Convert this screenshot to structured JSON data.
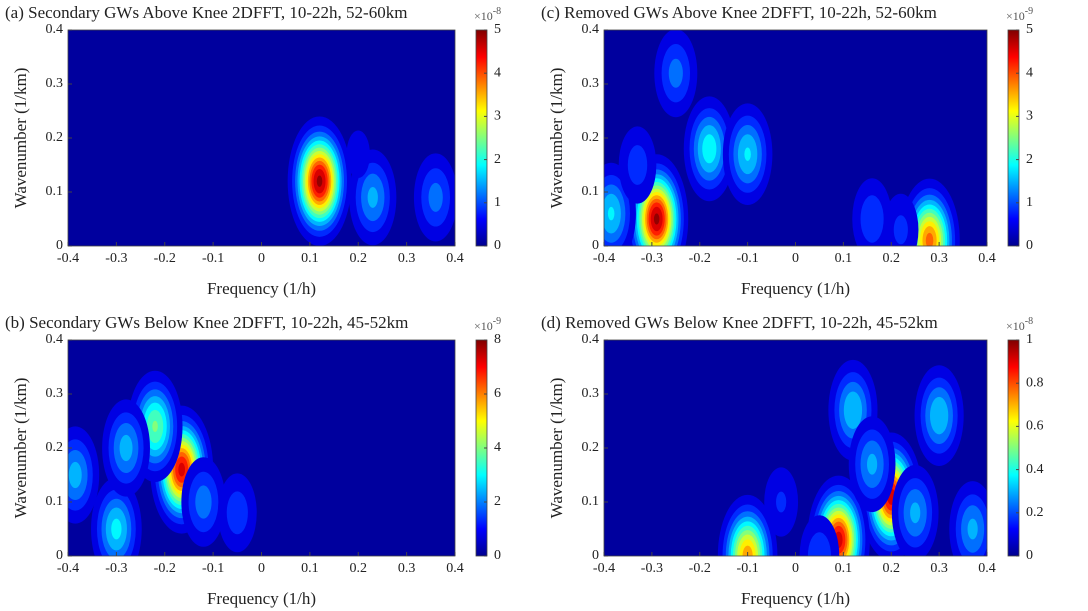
{
  "chart_data": [
    {
      "type": "contour",
      "title": "(a) Secondary GWs Above Knee 2DFFT, 10-22h, 52-60km",
      "xlabel": "Frequency (1/h)",
      "ylabel": "Wavenumber (1/km)",
      "xlim": [
        -0.4,
        0.4
      ],
      "xticks": [
        -0.4,
        -0.3,
        -0.2,
        -0.1,
        0,
        0.1,
        0.2,
        0.3,
        0.4
      ],
      "ylim": [
        0,
        0.4
      ],
      "yticks": [
        0,
        0.1,
        0.2,
        0.3,
        0.4
      ],
      "clim": [
        0,
        5
      ],
      "cticks": [
        0,
        1,
        2,
        3,
        4,
        5
      ],
      "cscale": {
        "base": "×10",
        "exponent": "-8"
      },
      "colormap": "jet",
      "peaks": [
        {
          "x": 0.12,
          "y": 0.12,
          "value": 5
        },
        {
          "x": 0.23,
          "y": 0.09,
          "value": 1.5
        },
        {
          "x": 0.36,
          "y": 0.09,
          "value": 1.2
        },
        {
          "x": 0.2,
          "y": 0.17,
          "value": 0.5
        }
      ]
    },
    {
      "type": "contour",
      "title": "(b) Secondary GWs Below Knee 2DFFT, 10-22h, 45-52km",
      "xlabel": "Frequency (1/h)",
      "ylabel": "Wavenumber (1/km)",
      "xlim": [
        -0.4,
        0.4
      ],
      "xticks": [
        -0.4,
        -0.3,
        -0.2,
        -0.1,
        0,
        0.1,
        0.2,
        0.3,
        0.4
      ],
      "ylim": [
        0,
        0.4
      ],
      "yticks": [
        0,
        0.1,
        0.2,
        0.3,
        0.4
      ],
      "clim": [
        0,
        8
      ],
      "cticks": [
        0,
        2,
        4,
        6,
        8
      ],
      "cscale": {
        "base": "×10",
        "exponent": "-9"
      },
      "colormap": "jet",
      "peaks": [
        {
          "x": -0.165,
          "y": 0.16,
          "value": 7.5
        },
        {
          "x": -0.22,
          "y": 0.24,
          "value": 4
        },
        {
          "x": -0.3,
          "y": 0.05,
          "value": 3
        },
        {
          "x": -0.28,
          "y": 0.2,
          "value": 2.5
        },
        {
          "x": -0.385,
          "y": 0.15,
          "value": 2.5
        },
        {
          "x": -0.12,
          "y": 0.1,
          "value": 2
        },
        {
          "x": -0.05,
          "y": 0.08,
          "value": 1.5
        }
      ]
    },
    {
      "type": "contour",
      "title": "(c) Removed GWs Above Knee 2DFFT, 10-22h, 52-60km",
      "xlabel": "Frequency (1/h)",
      "ylabel": "Wavenumber (1/km)",
      "xlim": [
        -0.4,
        0.4
      ],
      "xticks": [
        -0.4,
        -0.3,
        -0.2,
        -0.1,
        0,
        0.1,
        0.2,
        0.3,
        0.4
      ],
      "ylim": [
        0,
        0.4
      ],
      "yticks": [
        0,
        0.1,
        0.2,
        0.3,
        0.4
      ],
      "clim": [
        0,
        5
      ],
      "cticks": [
        0,
        1,
        2,
        3,
        4,
        5
      ],
      "cscale": {
        "base": "×10",
        "exponent": "-9"
      },
      "colormap": "jet",
      "peaks": [
        {
          "x": -0.29,
          "y": 0.05,
          "value": 5
        },
        {
          "x": -0.18,
          "y": 0.18,
          "value": 2
        },
        {
          "x": -0.1,
          "y": 0.17,
          "value": 1.8
        },
        {
          "x": -0.25,
          "y": 0.32,
          "value": 1.2
        },
        {
          "x": -0.385,
          "y": 0.06,
          "value": 1.8
        },
        {
          "x": -0.33,
          "y": 0.15,
          "value": 0.9
        },
        {
          "x": 0.28,
          "y": 0.01,
          "value": 4
        },
        {
          "x": 0.16,
          "y": 0.05,
          "value": 1
        },
        {
          "x": 0.22,
          "y": 0.03,
          "value": 0.8
        }
      ]
    },
    {
      "type": "contour",
      "title": "(d) Removed GWs Below Knee 2DFFT, 10-22h, 45-52km",
      "xlabel": "Frequency (1/h)",
      "ylabel": "Wavenumber (1/km)",
      "xlim": [
        -0.4,
        0.4
      ],
      "xticks": [
        -0.4,
        -0.3,
        -0.2,
        -0.1,
        0,
        0.1,
        0.2,
        0.3,
        0.4
      ],
      "ylim": [
        0,
        0.4
      ],
      "yticks": [
        0,
        0.1,
        0.2,
        0.3,
        0.4
      ],
      "clim": [
        0,
        1
      ],
      "cticks": [
        0,
        0.2,
        0.4,
        0.6,
        0.8,
        1
      ],
      "cscale": {
        "base": "×10",
        "exponent": "-8"
      },
      "colormap": "jet",
      "peaks": [
        {
          "x": 0.2,
          "y": 0.11,
          "value": 0.95
        },
        {
          "x": 0.09,
          "y": 0.03,
          "value": 0.95
        },
        {
          "x": -0.1,
          "y": 0.0,
          "value": 0.75
        },
        {
          "x": 0.12,
          "y": 0.27,
          "value": 0.35
        },
        {
          "x": 0.3,
          "y": 0.26,
          "value": 0.35
        },
        {
          "x": 0.25,
          "y": 0.08,
          "value": 0.3
        },
        {
          "x": 0.37,
          "y": 0.05,
          "value": 0.3
        },
        {
          "x": 0.16,
          "y": 0.17,
          "value": 0.3
        },
        {
          "x": -0.03,
          "y": 0.1,
          "value": 0.15
        },
        {
          "x": 0.05,
          "y": 0.0,
          "value": 0.2
        }
      ]
    }
  ]
}
